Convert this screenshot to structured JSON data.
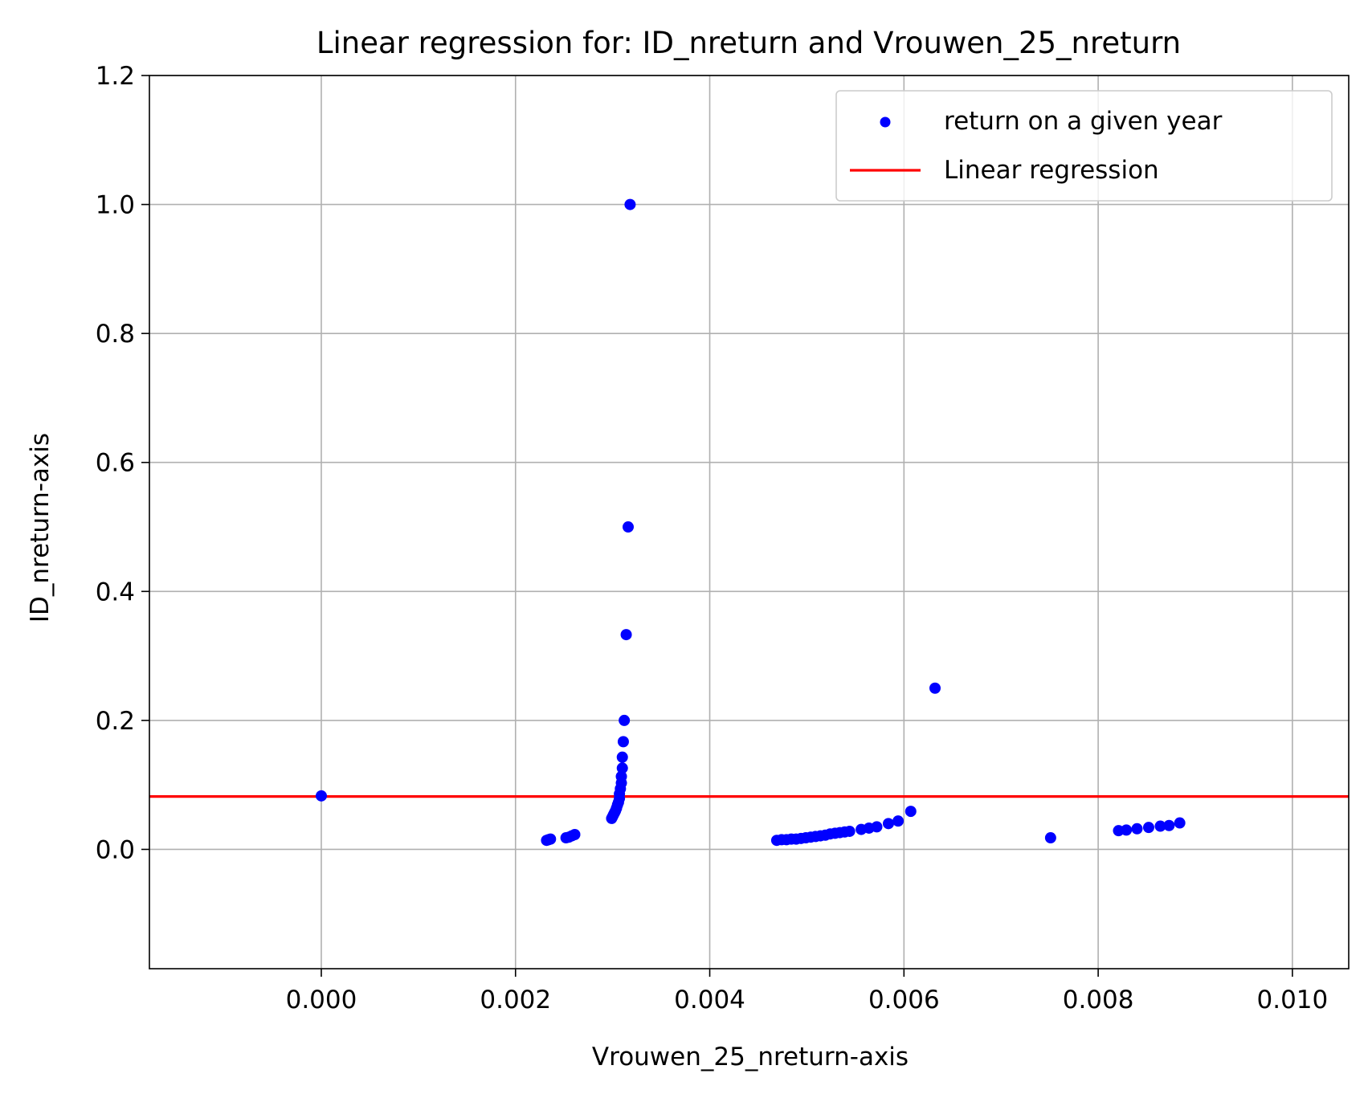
{
  "chart_data": {
    "type": "scatter",
    "title": "Linear regression for: ID_nreturn and Vrouwen_25_nreturn",
    "xlabel": "Vrouwen_25_nreturn-axis",
    "ylabel": "ID_nreturn-axis",
    "xlim": [
      -0.00177,
      0.01058
    ],
    "ylim": [
      -0.185,
      1.2
    ],
    "xticks": [
      0.0,
      0.002,
      0.004,
      0.006,
      0.008,
      0.01
    ],
    "xtick_labels": [
      "0.000",
      "0.002",
      "0.004",
      "0.006",
      "0.008",
      "0.010"
    ],
    "yticks": [
      0.0,
      0.2,
      0.4,
      0.6,
      0.8,
      1.0,
      1.2
    ],
    "ytick_labels": [
      "0.0",
      "0.2",
      "0.4",
      "0.6",
      "0.8",
      "1.0",
      "1.2"
    ],
    "grid": true,
    "legend_position": "top-right",
    "series": [
      {
        "name": "return on a given year",
        "kind": "scatter",
        "color": "#0000ff",
        "points": [
          [
            0.0,
            0.083
          ],
          [
            0.00232,
            0.014
          ],
          [
            0.00234,
            0.015
          ],
          [
            0.00236,
            0.016
          ],
          [
            0.00252,
            0.018
          ],
          [
            0.00255,
            0.019
          ],
          [
            0.00258,
            0.021
          ],
          [
            0.00261,
            0.023
          ],
          [
            0.00299,
            0.048
          ],
          [
            0.003,
            0.051
          ],
          [
            0.00301,
            0.054
          ],
          [
            0.00302,
            0.057
          ],
          [
            0.00303,
            0.06
          ],
          [
            0.00304,
            0.064
          ],
          [
            0.00305,
            0.069
          ],
          [
            0.00306,
            0.073
          ],
          [
            0.00307,
            0.079
          ],
          [
            0.00307,
            0.086
          ],
          [
            0.00308,
            0.094
          ],
          [
            0.00309,
            0.103
          ],
          [
            0.00309,
            0.113
          ],
          [
            0.0031,
            0.126
          ],
          [
            0.0031,
            0.143
          ],
          [
            0.00311,
            0.167
          ],
          [
            0.00312,
            0.2
          ],
          [
            0.00314,
            0.333
          ],
          [
            0.00316,
            0.5
          ],
          [
            0.00318,
            1.0
          ],
          [
            0.00469,
            0.014
          ],
          [
            0.00474,
            0.015
          ],
          [
            0.00479,
            0.015
          ],
          [
            0.00484,
            0.016
          ],
          [
            0.00489,
            0.016
          ],
          [
            0.00494,
            0.017
          ],
          [
            0.00499,
            0.018
          ],
          [
            0.00504,
            0.019
          ],
          [
            0.00509,
            0.02
          ],
          [
            0.00514,
            0.021
          ],
          [
            0.00519,
            0.022
          ],
          [
            0.00524,
            0.024
          ],
          [
            0.00529,
            0.025
          ],
          [
            0.00534,
            0.026
          ],
          [
            0.00539,
            0.027
          ],
          [
            0.00544,
            0.028
          ],
          [
            0.00556,
            0.031
          ],
          [
            0.00564,
            0.033
          ],
          [
            0.00572,
            0.035
          ],
          [
            0.00584,
            0.04
          ],
          [
            0.00594,
            0.044
          ],
          [
            0.00607,
            0.059
          ],
          [
            0.00632,
            0.25
          ],
          [
            0.00751,
            0.018
          ],
          [
            0.00821,
            0.029
          ],
          [
            0.00829,
            0.03
          ],
          [
            0.0084,
            0.032
          ],
          [
            0.00852,
            0.034
          ],
          [
            0.00864,
            0.036
          ],
          [
            0.00873,
            0.037
          ],
          [
            0.00884,
            0.041
          ]
        ]
      },
      {
        "name": "Linear regression",
        "kind": "line",
        "color": "#ff0000",
        "x": [
          -0.00177,
          0.01058
        ],
        "y": [
          0.082,
          0.082
        ]
      }
    ]
  }
}
